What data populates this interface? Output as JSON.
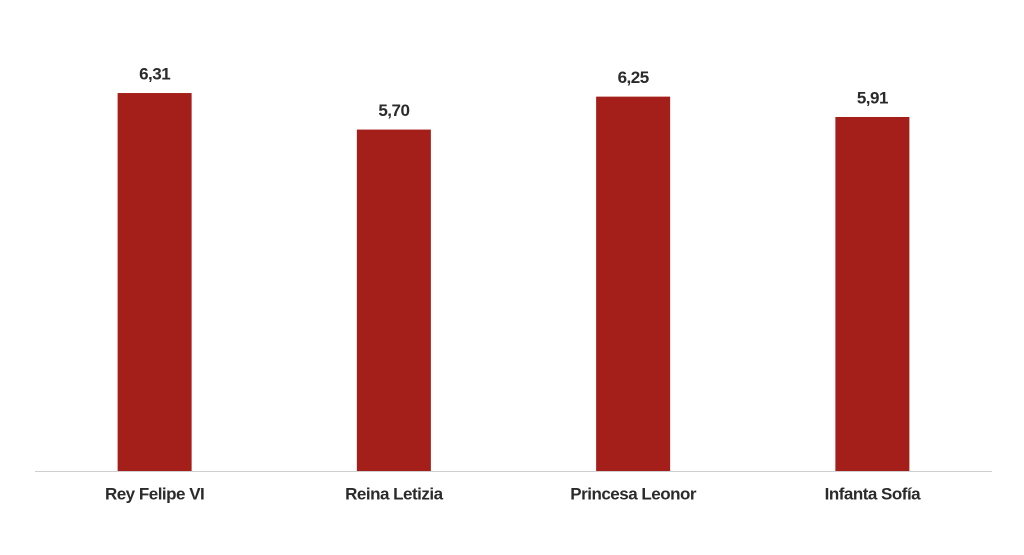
{
  "chart_data": {
    "type": "bar",
    "categories": [
      "Rey Felipe VI",
      "Reina Letizia",
      "Princesa Leonor",
      "Infanta Sofía"
    ],
    "values": [
      6.31,
      5.7,
      6.25,
      5.91
    ],
    "value_labels": [
      "6,31",
      "5,70",
      "6,25",
      "5,91"
    ],
    "color": "#a51f1a"
  }
}
